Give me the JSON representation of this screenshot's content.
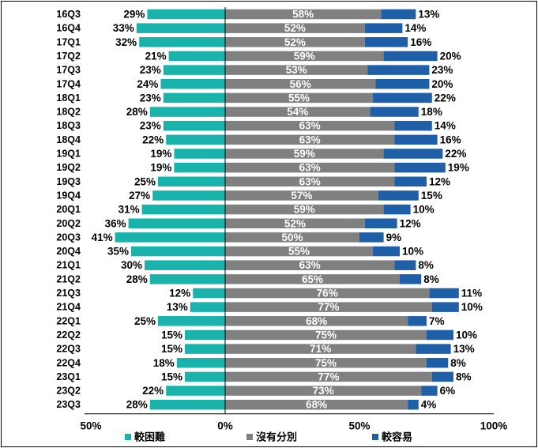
{
  "chart_data": {
    "type": "bar",
    "stacked": "diverging",
    "categories": [
      "16Q3",
      "16Q4",
      "17Q1",
      "17Q2",
      "17Q3",
      "17Q4",
      "18Q1",
      "18Q2",
      "18Q3",
      "18Q4",
      "19Q1",
      "19Q2",
      "19Q3",
      "19Q4",
      "20Q1",
      "20Q2",
      "20Q3",
      "20Q4",
      "21Q1",
      "21Q2",
      "21Q3",
      "21Q4",
      "22Q1",
      "22Q2",
      "22Q3",
      "22Q4",
      "23Q1",
      "23Q2",
      "23Q3"
    ],
    "series": [
      {
        "name": "較困難",
        "color": "#1ab3ac",
        "values": [
          29,
          33,
          32,
          21,
          23,
          24,
          23,
          28,
          23,
          22,
          19,
          19,
          25,
          27,
          31,
          36,
          41,
          35,
          30,
          28,
          12,
          13,
          25,
          15,
          15,
          18,
          15,
          22,
          28
        ]
      },
      {
        "name": "沒有分別",
        "color": "#808080",
        "values": [
          58,
          52,
          52,
          59,
          53,
          56,
          55,
          54,
          63,
          63,
          59,
          63,
          63,
          57,
          59,
          52,
          50,
          55,
          63,
          65,
          76,
          77,
          68,
          75,
          71,
          75,
          77,
          73,
          68
        ]
      },
      {
        "name": "較容易",
        "color": "#1f5fa8",
        "values": [
          13,
          14,
          16,
          20,
          23,
          20,
          22,
          18,
          14,
          16,
          22,
          19,
          12,
          15,
          10,
          12,
          9,
          10,
          8,
          8,
          11,
          10,
          7,
          10,
          13,
          8,
          8,
          6,
          4
        ]
      }
    ],
    "xticks": [
      "50%",
      "0%",
      "50%",
      "100%"
    ],
    "xlim": [
      -50,
      100
    ],
    "grid": false,
    "legend": "bottom"
  }
}
